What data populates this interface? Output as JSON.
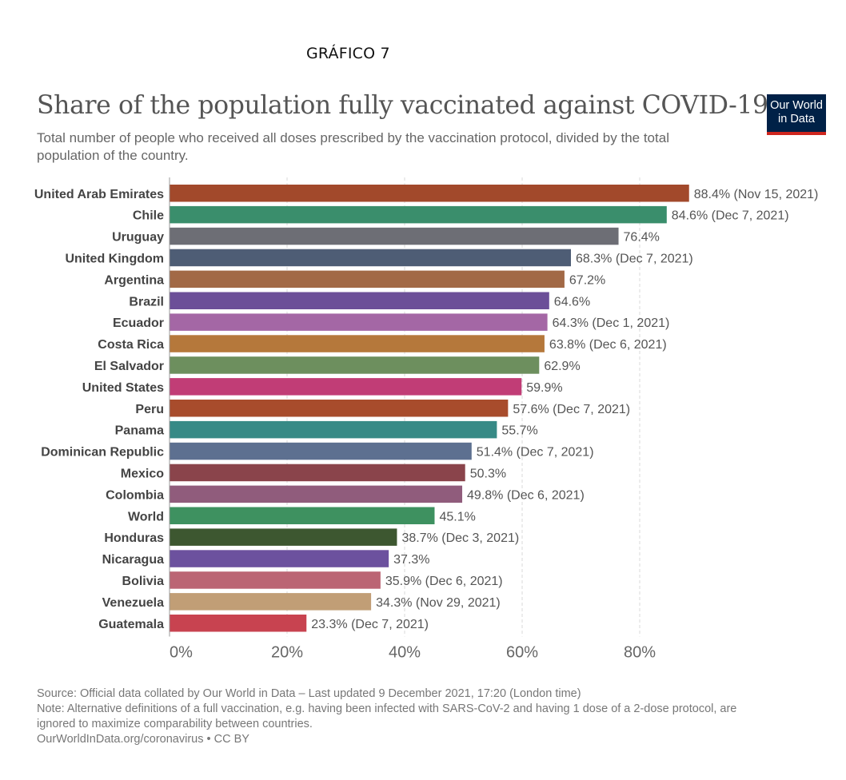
{
  "header": {
    "label": "GRÁFICO 7"
  },
  "logo": {
    "line1": "Our World",
    "line2": "in Data"
  },
  "chart_data": {
    "type": "bar",
    "orientation": "horizontal",
    "title": "Share of the population fully vaccinated against COVID-19",
    "subtitle": "Total number of people who received all doses prescribed by the vaccination protocol, divided by the total population of the country.",
    "xlim": [
      0,
      90
    ],
    "x_ticks": [
      "0%",
      "20%",
      "40%",
      "60%",
      "80%"
    ],
    "x_tick_values": [
      0,
      20,
      40,
      60,
      80
    ],
    "grid": true,
    "categories": [
      "United Arab Emirates",
      "Chile",
      "Uruguay",
      "United Kingdom",
      "Argentina",
      "Brazil",
      "Ecuador",
      "Costa Rica",
      "El Salvador",
      "United States",
      "Peru",
      "Panama",
      "Dominican Republic",
      "Mexico",
      "Colombia",
      "World",
      "Honduras",
      "Nicaragua",
      "Bolivia",
      "Venezuela",
      "Guatemala"
    ],
    "values": [
      88.4,
      84.6,
      76.4,
      68.3,
      67.2,
      64.6,
      64.3,
      63.8,
      62.9,
      59.9,
      57.6,
      55.7,
      51.4,
      50.3,
      49.8,
      45.1,
      38.7,
      37.3,
      35.9,
      34.3,
      23.3
    ],
    "labels": [
      "88.4% (Nov 15, 2021)",
      "84.6% (Dec 7, 2021)",
      "76.4%",
      "68.3% (Dec 7, 2021)",
      "67.2%",
      "64.6%",
      "64.3% (Dec 1, 2021)",
      "63.8% (Dec 6, 2021)",
      "62.9%",
      "59.9%",
      "57.6% (Dec 7, 2021)",
      "55.7%",
      "51.4% (Dec 7, 2021)",
      "50.3%",
      "49.8% (Dec 6, 2021)",
      "45.1%",
      "38.7% (Dec 3, 2021)",
      "37.3%",
      "35.9% (Dec 6, 2021)",
      "34.3% (Nov 29, 2021)",
      "23.3% (Dec 7, 2021)"
    ],
    "colors": [
      "#a2492b",
      "#3a8e6c",
      "#6d6e75",
      "#4e5d75",
      "#a26946",
      "#6c4f98",
      "#a467a5",
      "#b5783b",
      "#6d8f5e",
      "#c13d76",
      "#a84c2c",
      "#378a86",
      "#5d7090",
      "#8a444b",
      "#905c7c",
      "#3e9160",
      "#3d5730",
      "#6c519e",
      "#bb6574",
      "#c19e76",
      "#c84350"
    ]
  },
  "footer": {
    "source": "Source: Official data collated by Our World in Data – Last updated 9 December 2021, 17:20 (London time)",
    "note_line1": "Note: Alternative definitions of a full vaccination, e.g. having been infected with SARS-CoV-2 and having 1 dose of a 2-dose protocol, are",
    "note_line2": "ignored to maximize comparability between countries.",
    "credit": "OurWorldInData.org/coronavirus • CC BY"
  }
}
